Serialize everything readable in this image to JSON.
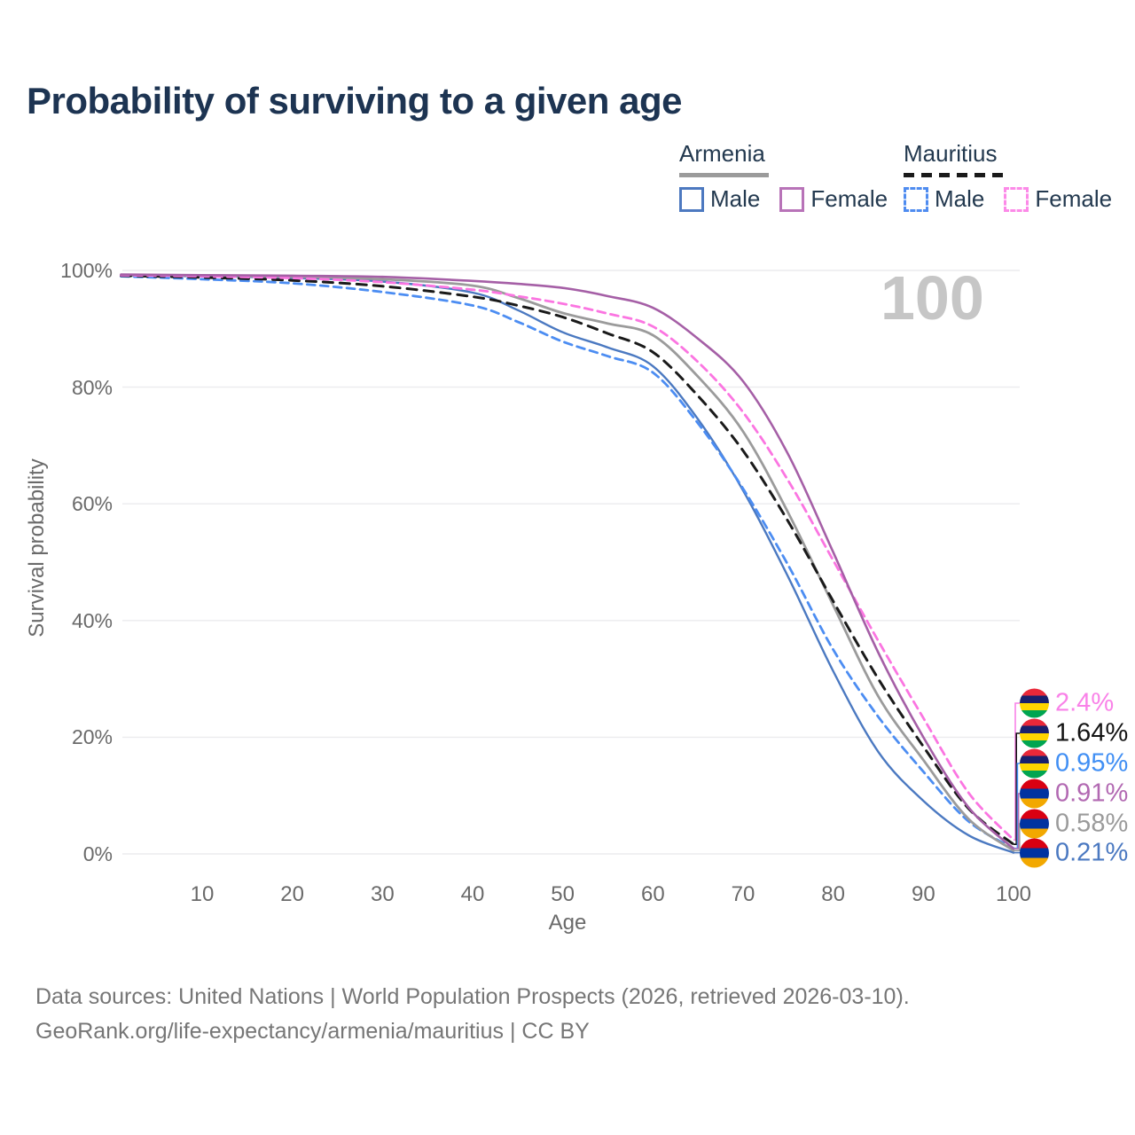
{
  "title": "Probability of surviving to a given age",
  "watermark": "100",
  "legend": {
    "groups": [
      {
        "name": "Armenia",
        "underline_color": "#9b9b9b",
        "underline_style": "solid",
        "items": [
          {
            "label": "Male",
            "color": "#4d79c0",
            "dashed": false
          },
          {
            "label": "Female",
            "color": "#b873b8",
            "dashed": false
          }
        ]
      },
      {
        "name": "Mauritius",
        "underline_color": "#1a1a1a",
        "underline_style": "dashed",
        "items": [
          {
            "label": "Male",
            "color": "#4f8cf0",
            "dashed": true
          },
          {
            "label": "Female",
            "color": "#fc8ae8",
            "dashed": true
          }
        ]
      }
    ]
  },
  "axes": {
    "xlabel": "Age",
    "ylabel": "Survival probability",
    "x_ticks": [
      10,
      20,
      30,
      40,
      50,
      60,
      70,
      80,
      90,
      100
    ],
    "y_ticks": [
      {
        "label": "100%",
        "value": 100
      },
      {
        "label": "80%",
        "value": 80
      },
      {
        "label": "60%",
        "value": 60
      },
      {
        "label": "40%",
        "value": 40
      },
      {
        "label": "20%",
        "value": 20
      },
      {
        "label": "0%",
        "value": 0
      }
    ]
  },
  "chart_data": {
    "type": "line",
    "title": "Probability of surviving to a given age",
    "xlabel": "Age",
    "ylabel": "Survival probability",
    "xlim": [
      0,
      100
    ],
    "ylim": [
      0,
      100
    ],
    "grid": "horizontal-only",
    "legend_position": "top-right",
    "x": [
      1,
      10,
      20,
      30,
      40,
      45,
      50,
      55,
      60,
      65,
      70,
      75,
      80,
      85,
      90,
      95,
      100
    ],
    "series": [
      {
        "key": "armenia-male",
        "name": "Armenia Male",
        "color": "#4b79c1",
        "dashed": false,
        "width": 2.4,
        "values": [
          99.1,
          99.0,
          98.7,
          98.1,
          96.2,
          93.2,
          89.4,
          86.8,
          83.6,
          74.5,
          62.3,
          47.5,
          31.3,
          17.5,
          9.1,
          3.2,
          0.21
        ]
      },
      {
        "key": "mauritius-male",
        "name": "Mauritius Male",
        "color": "#4c8df2",
        "dashed": true,
        "width": 2.8,
        "values": [
          99.0,
          98.5,
          97.8,
          96.3,
          94.0,
          91.2,
          87.8,
          85.3,
          82.5,
          73.8,
          62.6,
          49.5,
          35.0,
          23.5,
          14.1,
          5.6,
          0.95
        ]
      },
      {
        "key": "armenia-total",
        "name": "Armenia",
        "color": "#9b9b9b",
        "dashed": false,
        "width": 2.8,
        "values": [
          99.2,
          99.1,
          98.9,
          98.5,
          97.4,
          95.3,
          92.7,
          90.9,
          88.9,
          81.8,
          72.4,
          58.5,
          42.6,
          27.0,
          16.1,
          6.0,
          0.58
        ]
      },
      {
        "key": "mauritius-total",
        "name": "Mauritius",
        "color": "#1a1a1a",
        "dashed": true,
        "width": 3.0,
        "values": [
          99.1,
          98.8,
          98.3,
          97.3,
          95.5,
          94.0,
          92.0,
          89.2,
          86.0,
          78.5,
          69.1,
          57.0,
          43.3,
          30.0,
          18.4,
          7.8,
          1.64
        ]
      },
      {
        "key": "mauritius-female",
        "name": "Mauritius Female",
        "color": "#fb75e1",
        "dashed": true,
        "width": 2.8,
        "values": [
          99.2,
          99.0,
          98.7,
          98.0,
          96.7,
          95.6,
          94.3,
          92.6,
          90.4,
          84.3,
          75.7,
          64.0,
          50.3,
          36.5,
          23.3,
          10.5,
          2.4
        ]
      },
      {
        "key": "armenia-female",
        "name": "Armenia Female",
        "color": "#a55fa6",
        "dashed": false,
        "width": 2.6,
        "values": [
          99.3,
          99.2,
          99.1,
          98.9,
          98.2,
          97.7,
          97.0,
          95.6,
          93.6,
          88.3,
          81.0,
          68.5,
          51.7,
          34.5,
          20.0,
          8.0,
          0.91
        ]
      }
    ],
    "end_annotations": [
      {
        "label": "2.4%",
        "series": "mauritius-female",
        "flag": "mauritius",
        "color": "#f982e8"
      },
      {
        "label": "1.64%",
        "series": "mauritius-total",
        "flag": "mauritius",
        "color": "#141414"
      },
      {
        "label": "0.95%",
        "series": "mauritius-male",
        "flag": "mauritius",
        "color": "#418ff4"
      },
      {
        "label": "0.91%",
        "series": "armenia-female",
        "flag": "armenia",
        "color": "#b269b2"
      },
      {
        "label": "0.58%",
        "series": "armenia-total",
        "flag": "armenia",
        "color": "#9b9b9b"
      },
      {
        "label": "0.21%",
        "series": "armenia-male",
        "flag": "armenia",
        "color": "#4b79c1"
      }
    ]
  },
  "flags": {
    "mauritius": [
      "#EA2839",
      "#1A206D",
      "#FFD500",
      "#00A551"
    ],
    "armenia": [
      "#D90012",
      "#0033A0",
      "#F2A800"
    ]
  },
  "footer": {
    "line1": "Data sources: United Nations | World Population Prospects (2026, retrieved 2026-03-10).",
    "line2": "GeoRank.org/life-expectancy/armenia/mauritius | CC BY"
  }
}
